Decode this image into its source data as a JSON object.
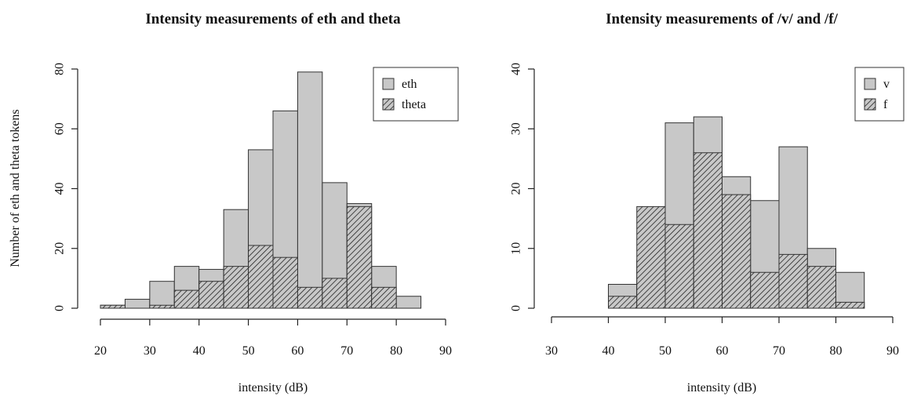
{
  "figure": {
    "shared_ylabel": "Number of eth and theta tokens"
  },
  "chart_data": [
    {
      "type": "bar",
      "subtype": "overlaid-histogram",
      "title": "Intensity measurements of eth and theta",
      "xlabel": "intensity (dB)",
      "ylabel": "Number of eth and theta tokens",
      "bin_width": 5,
      "xlim": [
        20,
        90
      ],
      "ylim": [
        0,
        80
      ],
      "xticks": [
        20,
        30,
        40,
        50,
        60,
        70,
        80,
        90
      ],
      "yticks": [
        0,
        20,
        40,
        60,
        80
      ],
      "bins": [
        20,
        25,
        30,
        35,
        40,
        45,
        50,
        55,
        60,
        65,
        70,
        75,
        80,
        85
      ],
      "series": [
        {
          "name": "eth",
          "fill": "solid",
          "color": "#c8c8c8",
          "values": [
            1,
            3,
            9,
            14,
            13,
            33,
            53,
            66,
            79,
            42,
            35,
            14,
            4,
            0
          ]
        },
        {
          "name": "theta",
          "fill": "hatched",
          "color": "#c8c8c8",
          "values": [
            1,
            0,
            1,
            6,
            9,
            14,
            21,
            17,
            7,
            10,
            34,
            7,
            0,
            0
          ]
        }
      ],
      "grid": false,
      "legend": "top-right"
    },
    {
      "type": "bar",
      "subtype": "overlaid-histogram",
      "title": "Intensity measurements of /v/ and /f/",
      "xlabel": "intensity (dB)",
      "ylabel": "",
      "bin_width": 5,
      "xlim": [
        30,
        90
      ],
      "ylim": [
        0,
        40
      ],
      "xticks": [
        30,
        40,
        50,
        60,
        70,
        80,
        90
      ],
      "yticks": [
        0,
        10,
        20,
        30,
        40
      ],
      "bins": [
        30,
        35,
        40,
        45,
        50,
        55,
        60,
        65,
        70,
        75,
        80,
        85
      ],
      "series": [
        {
          "name": "v",
          "fill": "solid",
          "color": "#c8c8c8",
          "values": [
            0,
            0,
            4,
            8,
            31,
            32,
            22,
            18,
            27,
            10,
            6,
            0
          ]
        },
        {
          "name": "f",
          "fill": "hatched",
          "color": "#c8c8c8",
          "values": [
            0,
            0,
            2,
            17,
            14,
            26,
            19,
            6,
            9,
            7,
            1,
            0
          ]
        }
      ],
      "grid": false,
      "legend": "top-right"
    }
  ]
}
